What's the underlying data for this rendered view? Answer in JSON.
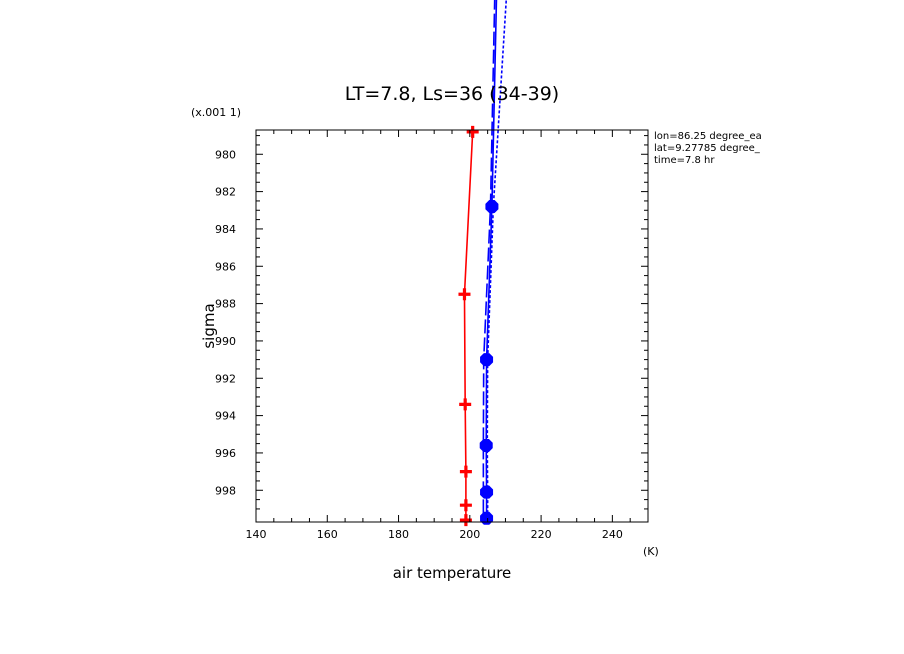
{
  "chart_data": {
    "type": "line",
    "title": "LT=7.8, Ls=36 (34-39)",
    "xlabel": "air temperature",
    "ylabel": "sigma",
    "x_unit": "(K)",
    "y_scale_note": "(x.001 1)",
    "xlim": [
      140,
      250
    ],
    "ylim": [
      999.7,
      978.7
    ],
    "x_ticks": [
      140,
      160,
      180,
      200,
      220,
      240
    ],
    "y_ticks": [
      980,
      982,
      984,
      986,
      988,
      990,
      992,
      994,
      996,
      998
    ],
    "grid": false,
    "info_lines": [
      "lon=86.25 degree_ea",
      "lat=9.27785 degree_",
      "time=7.8 hr"
    ],
    "series": [
      {
        "color": "#ff0000",
        "line": "solid",
        "marker": "plus",
        "points": [
          {
            "x": 200.8,
            "y": 978.8
          },
          {
            "x": 198.5,
            "y": 987.5
          },
          {
            "x": 198.7,
            "y": 993.4
          },
          {
            "x": 198.9,
            "y": 997.0
          },
          {
            "x": 198.9,
            "y": 998.8
          },
          {
            "x": 198.9,
            "y": 999.6
          }
        ]
      },
      {
        "color": "#0000ff",
        "line": "solid",
        "marker": "octagon",
        "points": [
          {
            "x": 207.5,
            "y": 971.5
          },
          {
            "x": 206.2,
            "y": 982.8
          },
          {
            "x": 204.7,
            "y": 991.0
          },
          {
            "x": 204.6,
            "y": 995.6
          },
          {
            "x": 204.7,
            "y": 998.1
          },
          {
            "x": 204.7,
            "y": 999.5
          }
        ]
      },
      {
        "color": "#0000ff",
        "line": "dashed",
        "marker": "none",
        "points": [
          {
            "x": 207.0,
            "y": 971.5
          },
          {
            "x": 205.8,
            "y": 982.8
          },
          {
            "x": 203.9,
            "y": 991.0
          },
          {
            "x": 203.8,
            "y": 995.6
          },
          {
            "x": 203.8,
            "y": 998.1
          },
          {
            "x": 203.8,
            "y": 999.5
          }
        ]
      },
      {
        "color": "#0000ff",
        "line": "dotted",
        "marker": "none",
        "points": [
          {
            "x": 210.3,
            "y": 971.5
          },
          {
            "x": 206.6,
            "y": 982.8
          },
          {
            "x": 205.0,
            "y": 991.0
          },
          {
            "x": 204.9,
            "y": 995.6
          },
          {
            "x": 205.0,
            "y": 998.1
          },
          {
            "x": 205.0,
            "y": 999.5
          }
        ]
      }
    ]
  }
}
